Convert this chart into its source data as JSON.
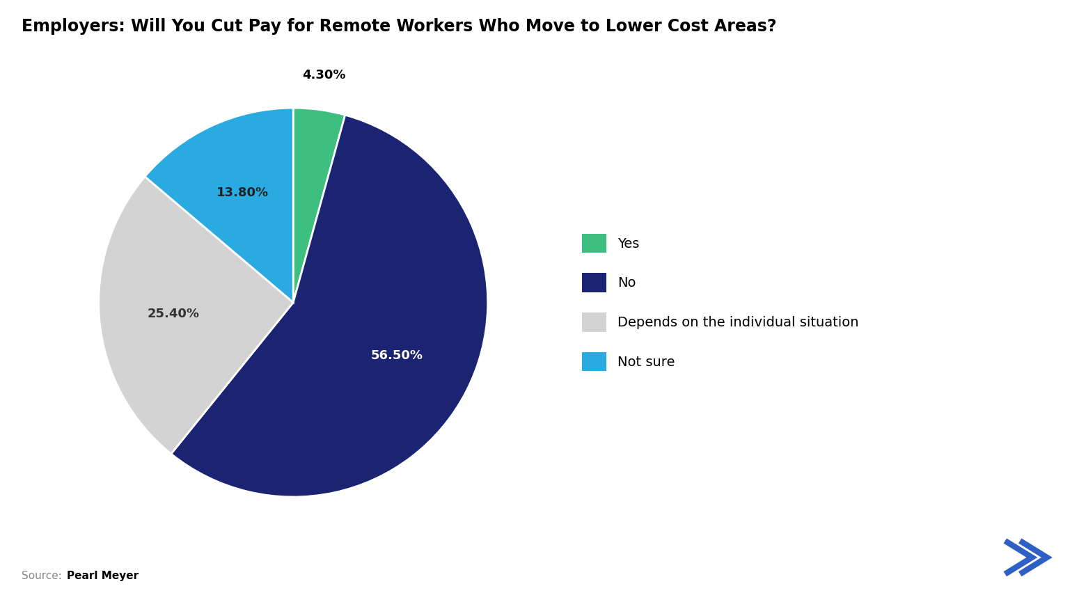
{
  "title": "Employers: Will You Cut Pay for Remote Workers Who Move to Lower Cost Areas?",
  "slices": [
    4.3,
    56.5,
    25.4,
    13.8
  ],
  "labels": [
    "Yes",
    "No",
    "Depends on the individual situation",
    "Not sure"
  ],
  "percentages": [
    "4.30%",
    "56.50%",
    "25.40%",
    "13.80%"
  ],
  "colors": [
    "#3dbf7f",
    "#1a2472",
    "#d3d3d3",
    "#29abe2"
  ],
  "source_label": "Source: ",
  "source_bold": "Pearl Meyer",
  "background_color": "#ffffff",
  "title_fontsize": 17,
  "label_fontsize": 13,
  "legend_fontsize": 14,
  "source_fontsize": 11,
  "startangle": 90,
  "icon_color": "#2d5fc4"
}
